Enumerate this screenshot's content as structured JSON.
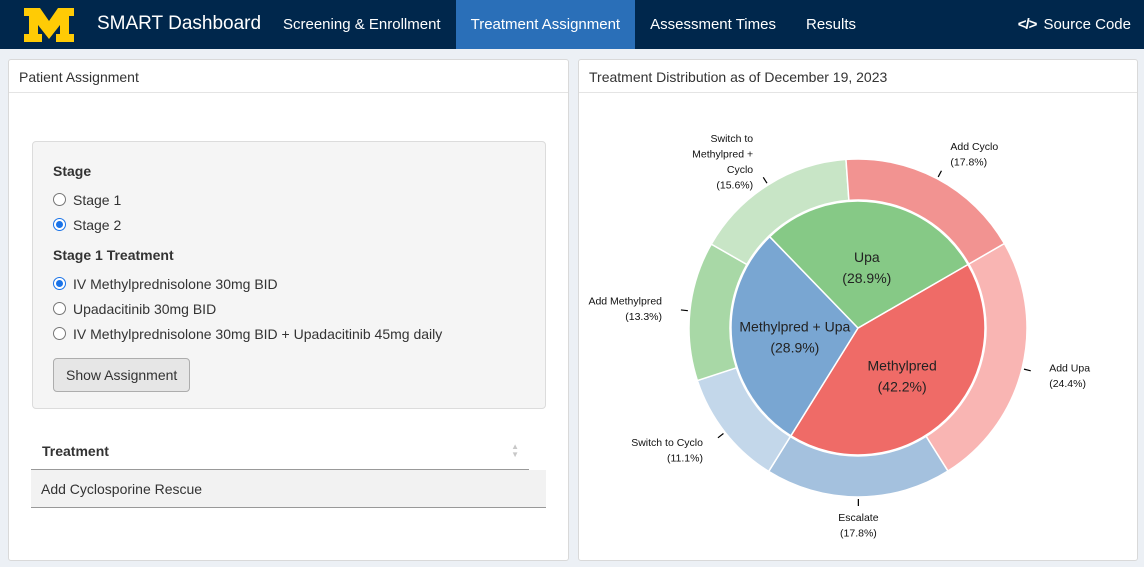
{
  "app": {
    "title": "SMART Dashboard"
  },
  "nav": {
    "items": [
      {
        "label": "Screening & Enrollment",
        "active": false
      },
      {
        "label": "Treatment Assignment",
        "active": true
      },
      {
        "label": "Assessment Times",
        "active": false
      },
      {
        "label": "Results",
        "active": false
      }
    ],
    "source_label": "Source Code"
  },
  "left_panel": {
    "title": "Patient Assignment",
    "stage": {
      "label": "Stage",
      "options": [
        {
          "label": "Stage 1",
          "checked": false
        },
        {
          "label": "Stage 2",
          "checked": true
        }
      ]
    },
    "stage1_treatment": {
      "label": "Stage 1 Treatment",
      "options": [
        {
          "label": "IV Methylprednisolone 30mg BID",
          "checked": true
        },
        {
          "label": "Upadacitinib 30mg BID",
          "checked": false
        },
        {
          "label": "IV Methylprednisolone 30mg BID + Upadacitinib 45mg daily",
          "checked": false
        }
      ]
    },
    "button_label": "Show Assignment",
    "table": {
      "header": "Treatment",
      "rows": [
        "Add Cyclosporine Rescue"
      ]
    }
  },
  "right_panel": {
    "title": "Treatment Distribution as of December 19, 2023"
  },
  "chart_data": {
    "type": "pie",
    "subtype": "nested-donut",
    "inner": [
      {
        "label": "Methylpred",
        "pct": "(42.2%)",
        "value": 42.2,
        "color": "#ef6b67"
      },
      {
        "label": "Methylpred + Upa",
        "pct": "(28.9%)",
        "value": 28.9,
        "color": "#79a6d2"
      },
      {
        "label": "Upa",
        "pct": "(28.9%)",
        "value": 28.9,
        "color": "#86c986"
      }
    ],
    "outer": [
      {
        "label": "Add Upa",
        "pct": "(24.4%)",
        "value": 24.4,
        "parent": "Methylpred",
        "color": "#f9b5b3"
      },
      {
        "label": "Escalate",
        "pct": "(17.8%)",
        "value": 17.8,
        "parent": "Methylpred + Upa",
        "color": "#a4c1de"
      },
      {
        "label": "Switch to Cyclo",
        "pct": "(11.1%)",
        "value": 11.1,
        "parent": "Methylpred + Upa",
        "color": "#c3d7ea"
      },
      {
        "label": "Add Methylpred",
        "pct": "(13.3%)",
        "value": 13.3,
        "parent": "Upa",
        "color": "#a8d8a6"
      },
      {
        "label": "Switch to Methylpred + Cyclo",
        "label_lines": [
          "Switch to",
          "Methylpred +",
          "Cyclo"
        ],
        "pct": "(15.6%)",
        "value": 15.6,
        "parent": "Upa",
        "color": "#c8e5c6"
      },
      {
        "label": "Add Cyclo",
        "pct": "(17.8%)",
        "value": 17.8,
        "parent": "Methylpred",
        "color": "#f29391"
      }
    ]
  }
}
